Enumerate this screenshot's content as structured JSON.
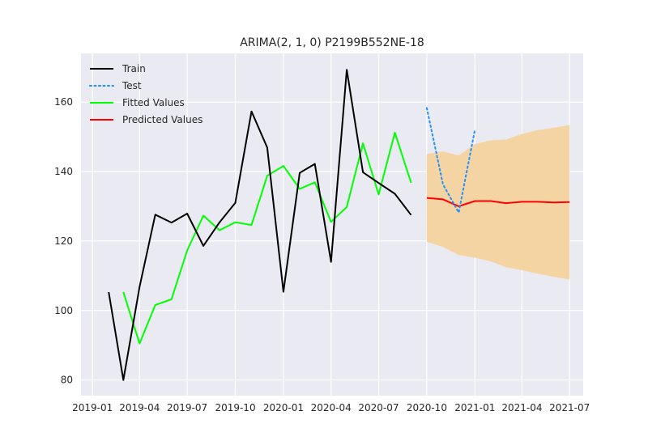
{
  "chart_data": {
    "type": "line",
    "title": "ARIMA(2, 1, 0) P2199B552NE-18",
    "xlabel": "",
    "ylabel": "",
    "xlim": [
      "2018-12-10",
      "2021-07-27"
    ],
    "ylim": [
      75.5,
      174
    ],
    "x_ticks": [
      "2019-01",
      "2019-04",
      "2019-07",
      "2019-10",
      "2020-01",
      "2020-04",
      "2020-07",
      "2020-10",
      "2021-01",
      "2021-04",
      "2021-07"
    ],
    "y_ticks": [
      80,
      100,
      120,
      140,
      160
    ],
    "grid": true,
    "legend_position": "top-left",
    "series": [
      {
        "name": "Train",
        "color": "#000000",
        "style": "solid",
        "x": [
          "2019-02-01",
          "2019-03-01",
          "2019-04-01",
          "2019-05-01",
          "2019-06-01",
          "2019-07-01",
          "2019-08-01",
          "2019-09-01",
          "2019-10-01",
          "2019-11-01",
          "2019-12-01",
          "2020-01-01",
          "2020-02-01",
          "2020-03-01",
          "2020-04-01",
          "2020-05-01",
          "2020-06-01",
          "2020-07-01",
          "2020-08-01",
          "2020-09-01"
        ],
        "values": [
          105.3,
          80.0,
          106.8,
          127.6,
          125.3,
          127.9,
          118.6,
          125.4,
          131.0,
          157.3,
          146.9,
          105.4,
          139.6,
          142.2,
          114.0,
          169.3,
          139.8,
          136.7,
          133.6,
          127.5
        ]
      },
      {
        "name": "Test",
        "color": "#1e90ff",
        "style": "dotted",
        "x": [
          "2020-10-01",
          "2020-11-01",
          "2020-12-01",
          "2021-01-01"
        ],
        "values": [
          158.3,
          136.3,
          128.2,
          152.0
        ]
      },
      {
        "name": "Fitted Values",
        "color": "#00ff00",
        "style": "solid",
        "x": [
          "2019-03-01",
          "2019-04-01",
          "2019-05-01",
          "2019-06-01",
          "2019-07-01",
          "2019-08-01",
          "2019-09-01",
          "2019-10-01",
          "2019-11-01",
          "2019-12-01",
          "2020-01-01",
          "2020-02-01",
          "2020-03-01",
          "2020-04-01",
          "2020-05-01",
          "2020-06-01",
          "2020-07-01",
          "2020-08-01",
          "2020-09-01"
        ],
        "values": [
          105.3,
          90.5,
          101.6,
          103.2,
          117.3,
          127.3,
          123.1,
          125.4,
          124.6,
          138.8,
          141.6,
          135.0,
          136.9,
          125.5,
          129.8,
          148.1,
          133.4,
          151.2,
          136.8
        ]
      },
      {
        "name": "Predicted Values",
        "color": "#ff0000",
        "style": "solid",
        "x": [
          "2020-10-01",
          "2020-11-01",
          "2020-12-01",
          "2021-01-01",
          "2021-02-01",
          "2021-03-01",
          "2021-04-01",
          "2021-05-01",
          "2021-06-01",
          "2021-07-01"
        ],
        "values": [
          132.4,
          132.0,
          130.0,
          131.5,
          131.5,
          130.9,
          131.3,
          131.3,
          131.1,
          131.2
        ]
      }
    ],
    "confidence_band": {
      "color": "#f5d4a3",
      "x": [
        "2020-10-01",
        "2020-11-01",
        "2020-12-01",
        "2021-01-01",
        "2021-02-01",
        "2021-03-01",
        "2021-04-01",
        "2021-05-01",
        "2021-06-01",
        "2021-07-01"
      ],
      "lower": [
        119.8,
        118.3,
        116.0,
        115.2,
        114.1,
        112.5,
        111.6,
        110.6,
        109.7,
        108.9
      ],
      "upper": [
        145.0,
        145.8,
        144.6,
        147.9,
        149.0,
        149.2,
        150.8,
        151.9,
        152.6,
        153.4
      ]
    }
  }
}
